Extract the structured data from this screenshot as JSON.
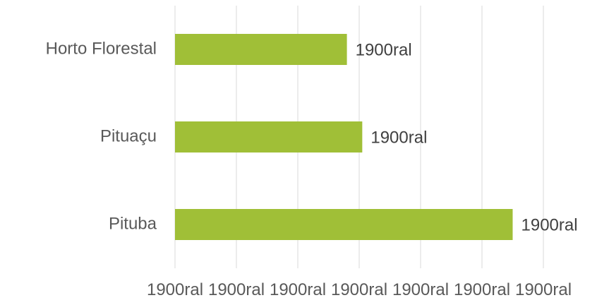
{
  "chart_data": {
    "type": "bar",
    "orientation": "horizontal",
    "categories": [
      "Horto Florestal",
      "Pituaçu",
      "Pituba"
    ],
    "values": [
      0.28,
      0.305,
      0.55
    ],
    "data_labels": [
      "1900ral",
      "1900ral",
      "1900ral"
    ],
    "xlim": [
      0,
      0.6
    ],
    "x_ticks": [
      0,
      0.1,
      0.2,
      0.3,
      0.4,
      0.5,
      0.6
    ],
    "x_tick_labels": [
      "1900ral",
      "1900ral",
      "1900ral",
      "1900ral",
      "1900ral",
      "1900ral",
      "1900ral"
    ],
    "grid": "vertical",
    "legend": "none",
    "colors": {
      "bar": "#a0bf37",
      "grid": "#d9d9d9",
      "text": "#595959"
    }
  }
}
